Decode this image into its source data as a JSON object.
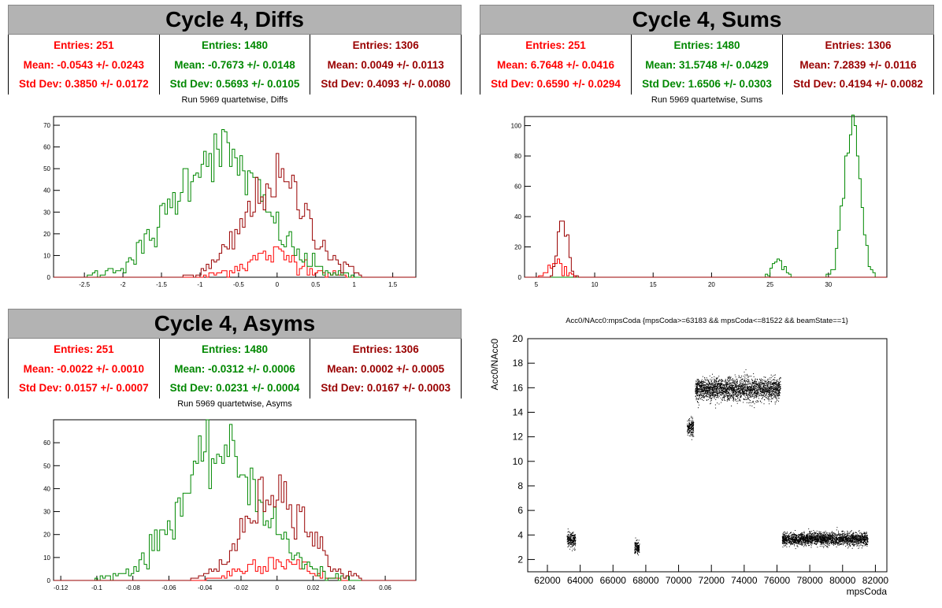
{
  "panels": {
    "diffs": {
      "title": "Cycle 4, Diffs",
      "subtitle": "Run 5969 quartetwise, Diffs",
      "stats": [
        {
          "entries": "Entries: 251",
          "mean": "Mean: -0.0543 +/- 0.0243",
          "std": "Std Dev: 0.3850 +/- 0.0172",
          "color": "#ff0000"
        },
        {
          "entries": "Entries: 1480",
          "mean": "Mean: -0.7673 +/- 0.0148",
          "std": "Std Dev: 0.5693 +/- 0.0105",
          "color": "#008800"
        },
        {
          "entries": "Entries: 1306",
          "mean": "Mean: 0.0049 +/- 0.0113",
          "std": "Std Dev: 0.4093 +/- 0.0080",
          "color": "#990000"
        }
      ]
    },
    "sums": {
      "title": "Cycle 4, Sums",
      "subtitle": "Run 5969 quartetwise, Sums",
      "stats": [
        {
          "entries": "Entries: 251",
          "mean": "Mean: 6.7648 +/- 0.0416",
          "std": "Std Dev: 0.6590 +/- 0.0294",
          "color": "#ff0000"
        },
        {
          "entries": "Entries: 1480",
          "mean": "Mean: 31.5748 +/- 0.0429",
          "std": "Std Dev: 1.6506 +/- 0.0303",
          "color": "#008800"
        },
        {
          "entries": "Entries: 1306",
          "mean": "Mean: 7.2839 +/- 0.0116",
          "std": "Std Dev: 0.4194 +/- 0.0082",
          "color": "#990000"
        }
      ]
    },
    "asyms": {
      "title": "Cycle 4, Asyms",
      "subtitle": "Run 5969 quartetwise, Asyms",
      "stats": [
        {
          "entries": "Entries: 251",
          "mean": "Mean: -0.0022 +/- 0.0010",
          "std": "Std Dev: 0.0157 +/- 0.0007",
          "color": "#ff0000"
        },
        {
          "entries": "Entries: 1480",
          "mean": "Mean: -0.0312 +/- 0.0006",
          "std": "Std Dev: 0.0231 +/- 0.0004",
          "color": "#008800"
        },
        {
          "entries": "Entries: 1306",
          "mean": "Mean: 0.0002 +/- 0.0005",
          "std": "Std Dev: 0.0167 +/- 0.0003",
          "color": "#990000"
        }
      ]
    },
    "scatter": {
      "subtitle": "Acc0/NAcc0:mpsCoda {mpsCoda>=63183 && mpsCoda<=81522 && beamState==1}"
    }
  },
  "chart_data": [
    {
      "type": "histogram",
      "name": "diffs",
      "xlim": [
        -2.9,
        1.8
      ],
      "ylim": [
        0,
        74
      ],
      "xticks": [
        -2.5,
        -2,
        -1.5,
        -1,
        -0.5,
        0,
        0.5,
        1,
        1.5
      ],
      "yticks": [
        0,
        10,
        20,
        30,
        40,
        50,
        60,
        70
      ],
      "series": [
        {
          "color": "#ff0000",
          "peaks": [
            [
              -0.05,
              10,
              0.38
            ]
          ]
        },
        {
          "color": "#008800",
          "peaks": [
            [
              -0.77,
              58,
              0.57
            ]
          ]
        },
        {
          "color": "#990000",
          "peaks": [
            [
              0.0,
              44,
              0.41
            ]
          ]
        }
      ]
    },
    {
      "type": "histogram",
      "name": "sums",
      "xlim": [
        4,
        35
      ],
      "ylim": [
        0,
        106
      ],
      "xticks": [
        5,
        10,
        15,
        20,
        25,
        30
      ],
      "yticks": [
        0,
        20,
        40,
        60,
        80,
        100
      ],
      "series": [
        {
          "color": "#ff0000",
          "peaks": [
            [
              6.8,
              9,
              0.66
            ]
          ]
        },
        {
          "color": "#008800",
          "peaks": [
            [
              25.8,
              10,
              0.5
            ],
            [
              32.0,
              98,
              0.7
            ]
          ]
        },
        {
          "color": "#990000",
          "peaks": [
            [
              7.28,
              38,
              0.42
            ]
          ]
        }
      ]
    },
    {
      "type": "histogram",
      "name": "asyms",
      "xlim": [
        -0.124,
        0.077
      ],
      "ylim": [
        0,
        70
      ],
      "xticks": [
        -0.12,
        -0.1,
        -0.08,
        -0.06,
        -0.04,
        -0.02,
        0,
        0.02,
        0.04,
        0.06
      ],
      "yticks": [
        0,
        10,
        20,
        30,
        40,
        50,
        60
      ],
      "series": [
        {
          "color": "#ff0000",
          "peaks": [
            [
              -0.002,
              9,
              0.0157
            ]
          ]
        },
        {
          "color": "#008800",
          "peaks": [
            [
              -0.031,
              55,
              0.023
            ]
          ]
        },
        {
          "color": "#990000",
          "peaks": [
            [
              0.0,
              40,
              0.0167
            ]
          ]
        }
      ]
    },
    {
      "type": "scatter",
      "name": "acc0",
      "xlabel": "mpsCoda",
      "ylabel": "Acc0/NAcc0",
      "xlim": [
        60800,
        82700
      ],
      "ylim": [
        1,
        20
      ],
      "xticks": [
        62000,
        64000,
        66000,
        68000,
        70000,
        72000,
        74000,
        76000,
        78000,
        80000,
        82000
      ],
      "yticks": [
        2,
        4,
        6,
        8,
        10,
        12,
        14,
        16,
        18,
        20
      ],
      "clusters": [
        {
          "x": [
            63183,
            63700
          ],
          "y_center": 3.6,
          "y_spread": 0.6
        },
        {
          "x": [
            67300,
            67600
          ],
          "y_center": 3.0,
          "y_spread": 0.5
        },
        {
          "x": [
            70500,
            70900
          ],
          "y_center": 12.8,
          "y_spread": 0.7
        },
        {
          "x": [
            71000,
            76200
          ],
          "y_center": 15.9,
          "y_spread": 0.9
        },
        {
          "x": [
            76300,
            81522
          ],
          "y_center": 3.7,
          "y_spread": 0.5
        }
      ]
    }
  ]
}
